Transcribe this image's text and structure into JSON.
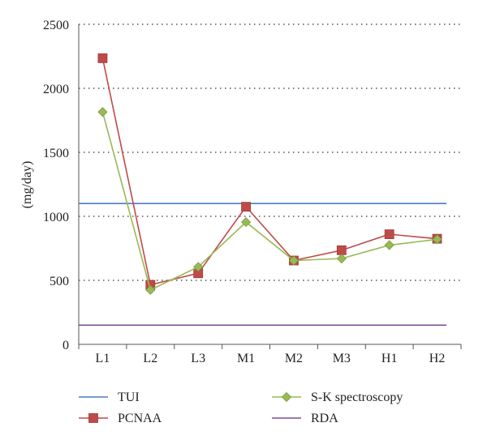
{
  "chart_data": {
    "type": "line",
    "title": "",
    "xlabel": "",
    "ylabel": "(mg/day)",
    "categories": [
      "L1",
      "L2",
      "L3",
      "M1",
      "M2",
      "M3",
      "H1",
      "H2"
    ],
    "ylim": [
      0,
      2500
    ],
    "yticks": [
      0,
      500,
      1000,
      1500,
      2000,
      2500
    ],
    "grid": "horizontal dotted",
    "legend_position": "bottom",
    "series": [
      {
        "name": "TUI",
        "color": "#4a7ebb",
        "marker": "none",
        "values": [
          1100,
          1100,
          1100,
          1100,
          1100,
          1100,
          1100,
          1100
        ]
      },
      {
        "name": "PCNAA",
        "color": "#be4b48",
        "marker": "square",
        "values": [
          2235,
          465,
          555,
          1075,
          655,
          735,
          860,
          825
        ]
      },
      {
        "name": "S-K spectroscopy",
        "color": "#98b954",
        "marker": "diamond",
        "values": [
          1815,
          425,
          605,
          955,
          655,
          670,
          775,
          820
        ]
      },
      {
        "name": "RDA",
        "color": "#7f4c96",
        "marker": "none",
        "values": [
          150,
          150,
          150,
          150,
          150,
          150,
          150,
          150
        ]
      }
    ]
  }
}
